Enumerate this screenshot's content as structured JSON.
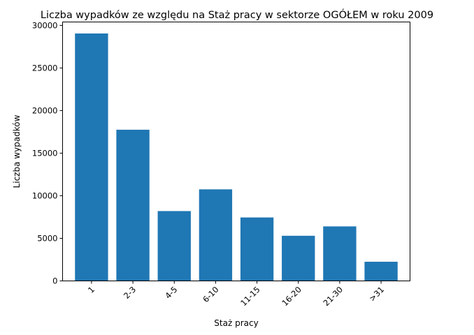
{
  "chart_data": {
    "type": "bar",
    "title": "Liczba wypadków ze względu na Staż pracy w sektorze OGÓŁEM   w roku 2009",
    "xlabel": "Staż pracy",
    "ylabel": "Liczba wypadków",
    "categories": [
      "1",
      "2-3",
      "4-5",
      "6-10",
      "11-15",
      "16-20",
      "21-30",
      ">31"
    ],
    "values": [
      29050,
      17750,
      8200,
      10750,
      7450,
      5300,
      6400,
      2250
    ],
    "ylim": [
      0,
      30400
    ],
    "yticks": [
      0,
      5000,
      10000,
      15000,
      20000,
      25000,
      30000
    ],
    "ytick_labels": [
      "0",
      "5000",
      "10000",
      "15000",
      "20000",
      "25000",
      "30000"
    ],
    "bar_color": "#1f77b4",
    "grid": false,
    "legend": "none"
  }
}
